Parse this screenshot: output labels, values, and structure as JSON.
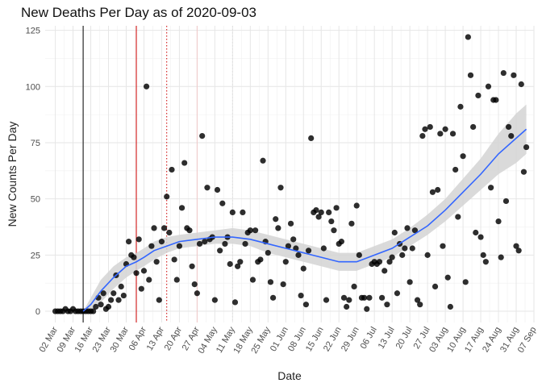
{
  "chart_data": {
    "type": "scatter",
    "title": "New Deaths Per Day as of 2020-09-03",
    "xlabel": "Date",
    "ylabel": "New Counts Per Day",
    "ylim": [
      -5,
      127
    ],
    "xlim": [
      "2020-02-27",
      "2020-09-07"
    ],
    "yticks": [
      0,
      25,
      50,
      75,
      100,
      125
    ],
    "xticks": [
      "02 Mar",
      "09 Mar",
      "16 Mar",
      "23 Mar",
      "30 Mar",
      "06 Apr",
      "13 Apr",
      "20 Apr",
      "27 Apr",
      "04 May",
      "11 May",
      "18 May",
      "25 May",
      "01 Jun",
      "08 Jun",
      "15 Jun",
      "22 Jun",
      "29 Jun",
      "06 Jul",
      "13 Jul",
      "20 Jul",
      "27 Jul",
      "03 Aug",
      "10 Aug",
      "17 Aug",
      "24 Aug",
      "31 Aug",
      "07 Sep"
    ],
    "xtick_dates": [
      "2020-03-02",
      "2020-03-09",
      "2020-03-16",
      "2020-03-23",
      "2020-03-30",
      "2020-04-06",
      "2020-04-13",
      "2020-04-20",
      "2020-04-27",
      "2020-05-04",
      "2020-05-11",
      "2020-05-18",
      "2020-05-25",
      "2020-06-01",
      "2020-06-08",
      "2020-06-15",
      "2020-06-22",
      "2020-06-29",
      "2020-07-06",
      "2020-07-13",
      "2020-07-20",
      "2020-07-27",
      "2020-08-03",
      "2020-08-10",
      "2020-08-17",
      "2020-08-24",
      "2020-08-31",
      "2020-09-07"
    ],
    "grid": true,
    "vertical_lines": [
      {
        "date": "2020-03-13",
        "color": "#000000",
        "style": "solid"
      },
      {
        "date": "2020-04-03",
        "color": "#cc0000",
        "style": "solid"
      },
      {
        "date": "2020-04-15",
        "color": "#cc0000",
        "style": "dotted"
      },
      {
        "date": "2020-04-27",
        "color": "#f0c8c8",
        "style": "solid"
      },
      {
        "date": "2020-05-11",
        "color": "#dddddd",
        "style": "dotted"
      }
    ],
    "series": [
      {
        "type": "scatter",
        "color": "#000000",
        "points": [
          [
            "2020-03-02",
            0
          ],
          [
            "2020-03-03",
            0
          ],
          [
            "2020-03-04",
            0
          ],
          [
            "2020-03-05",
            0
          ],
          [
            "2020-03-06",
            1
          ],
          [
            "2020-03-07",
            0
          ],
          [
            "2020-03-08",
            0
          ],
          [
            "2020-03-09",
            1
          ],
          [
            "2020-03-10",
            0
          ],
          [
            "2020-03-11",
            0
          ],
          [
            "2020-03-12",
            0
          ],
          [
            "2020-03-13",
            0
          ],
          [
            "2020-03-14",
            0
          ],
          [
            "2020-03-15",
            0
          ],
          [
            "2020-03-16",
            0
          ],
          [
            "2020-03-17",
            0
          ],
          [
            "2020-03-18",
            2
          ],
          [
            "2020-03-19",
            6
          ],
          [
            "2020-03-20",
            3
          ],
          [
            "2020-03-21",
            8
          ],
          [
            "2020-03-22",
            1
          ],
          [
            "2020-03-23",
            2
          ],
          [
            "2020-03-24",
            5
          ],
          [
            "2020-03-25",
            8
          ],
          [
            "2020-03-26",
            16
          ],
          [
            "2020-03-27",
            5
          ],
          [
            "2020-03-28",
            11
          ],
          [
            "2020-03-29",
            7
          ],
          [
            "2020-03-30",
            21
          ],
          [
            "2020-03-31",
            31
          ],
          [
            "2020-04-01",
            25
          ],
          [
            "2020-04-02",
            24
          ],
          [
            "2020-04-03",
            17
          ],
          [
            "2020-04-04",
            32
          ],
          [
            "2020-04-05",
            10
          ],
          [
            "2020-04-06",
            18
          ],
          [
            "2020-04-07",
            100
          ],
          [
            "2020-04-08",
            14
          ],
          [
            "2020-04-09",
            29
          ],
          [
            "2020-04-10",
            37
          ],
          [
            "2020-04-11",
            22
          ],
          [
            "2020-04-12",
            5
          ],
          [
            "2020-04-13",
            31
          ],
          [
            "2020-04-14",
            37
          ],
          [
            "2020-04-15",
            51
          ],
          [
            "2020-04-16",
            35
          ],
          [
            "2020-04-17",
            63
          ],
          [
            "2020-04-18",
            23
          ],
          [
            "2020-04-19",
            14
          ],
          [
            "2020-04-20",
            29
          ],
          [
            "2020-04-21",
            46
          ],
          [
            "2020-04-22",
            66
          ],
          [
            "2020-04-23",
            37
          ],
          [
            "2020-04-24",
            36
          ],
          [
            "2020-04-25",
            20
          ],
          [
            "2020-04-26",
            12
          ],
          [
            "2020-04-27",
            8
          ],
          [
            "2020-04-28",
            30
          ],
          [
            "2020-04-29",
            78
          ],
          [
            "2020-04-30",
            31
          ],
          [
            "2020-05-01",
            55
          ],
          [
            "2020-05-02",
            32
          ],
          [
            "2020-05-03",
            33
          ],
          [
            "2020-05-04",
            5
          ],
          [
            "2020-05-05",
            54
          ],
          [
            "2020-05-06",
            27
          ],
          [
            "2020-05-07",
            48
          ],
          [
            "2020-05-08",
            30
          ],
          [
            "2020-05-09",
            33
          ],
          [
            "2020-05-10",
            21
          ],
          [
            "2020-05-11",
            44
          ],
          [
            "2020-05-12",
            4
          ],
          [
            "2020-05-13",
            20
          ],
          [
            "2020-05-14",
            22
          ],
          [
            "2020-05-15",
            44
          ],
          [
            "2020-05-16",
            30
          ],
          [
            "2020-05-17",
            35
          ],
          [
            "2020-05-18",
            36
          ],
          [
            "2020-05-19",
            14
          ],
          [
            "2020-05-20",
            36
          ],
          [
            "2020-05-21",
            22
          ],
          [
            "2020-05-22",
            23
          ],
          [
            "2020-05-23",
            67
          ],
          [
            "2020-05-24",
            31
          ],
          [
            "2020-05-25",
            26
          ],
          [
            "2020-05-26",
            13
          ],
          [
            "2020-05-27",
            6
          ],
          [
            "2020-05-28",
            41
          ],
          [
            "2020-05-29",
            37
          ],
          [
            "2020-05-30",
            55
          ],
          [
            "2020-05-31",
            12
          ],
          [
            "2020-06-01",
            22
          ],
          [
            "2020-06-02",
            29
          ],
          [
            "2020-06-03",
            39
          ],
          [
            "2020-06-04",
            32
          ],
          [
            "2020-06-05",
            28
          ],
          [
            "2020-06-06",
            25
          ],
          [
            "2020-06-07",
            7
          ],
          [
            "2020-06-08",
            19
          ],
          [
            "2020-06-09",
            3
          ],
          [
            "2020-06-10",
            27
          ],
          [
            "2020-06-11",
            77
          ],
          [
            "2020-06-12",
            44
          ],
          [
            "2020-06-13",
            45
          ],
          [
            "2020-06-14",
            42
          ],
          [
            "2020-06-15",
            44
          ],
          [
            "2020-06-16",
            28
          ],
          [
            "2020-06-17",
            5
          ],
          [
            "2020-06-18",
            44
          ],
          [
            "2020-06-19",
            40
          ],
          [
            "2020-06-20",
            36
          ],
          [
            "2020-06-21",
            46
          ],
          [
            "2020-06-22",
            30
          ],
          [
            "2020-06-23",
            31
          ],
          [
            "2020-06-24",
            6
          ],
          [
            "2020-06-25",
            2
          ],
          [
            "2020-06-26",
            5
          ],
          [
            "2020-06-27",
            39
          ],
          [
            "2020-06-28",
            11
          ],
          [
            "2020-06-29",
            47
          ],
          [
            "2020-06-30",
            25
          ],
          [
            "2020-07-01",
            6
          ],
          [
            "2020-07-02",
            6
          ],
          [
            "2020-07-03",
            1
          ],
          [
            "2020-07-04",
            6
          ],
          [
            "2020-07-05",
            21
          ],
          [
            "2020-07-06",
            22
          ],
          [
            "2020-07-07",
            21
          ],
          [
            "2020-07-08",
            22
          ],
          [
            "2020-07-09",
            6
          ],
          [
            "2020-07-10",
            18
          ],
          [
            "2020-07-11",
            3
          ],
          [
            "2020-07-12",
            22
          ],
          [
            "2020-07-13",
            24
          ],
          [
            "2020-07-14",
            35
          ],
          [
            "2020-07-15",
            8
          ],
          [
            "2020-07-16",
            30
          ],
          [
            "2020-07-17",
            25
          ],
          [
            "2020-07-18",
            28
          ],
          [
            "2020-07-19",
            37
          ],
          [
            "2020-07-20",
            13
          ],
          [
            "2020-07-21",
            28
          ],
          [
            "2020-07-22",
            36
          ],
          [
            "2020-07-23",
            5
          ],
          [
            "2020-07-24",
            3
          ],
          [
            "2020-07-25",
            78
          ],
          [
            "2020-07-26",
            81
          ],
          [
            "2020-07-27",
            25
          ],
          [
            "2020-07-28",
            82
          ],
          [
            "2020-07-29",
            53
          ],
          [
            "2020-07-30",
            11
          ],
          [
            "2020-07-31",
            54
          ],
          [
            "2020-08-01",
            79
          ],
          [
            "2020-08-02",
            29
          ],
          [
            "2020-08-03",
            81
          ],
          [
            "2020-08-04",
            15
          ],
          [
            "2020-08-05",
            2
          ],
          [
            "2020-08-06",
            79
          ],
          [
            "2020-08-07",
            63
          ],
          [
            "2020-08-08",
            42
          ],
          [
            "2020-08-09",
            91
          ],
          [
            "2020-08-10",
            69
          ],
          [
            "2020-08-11",
            13
          ],
          [
            "2020-08-12",
            122
          ],
          [
            "2020-08-13",
            105
          ],
          [
            "2020-08-14",
            82
          ],
          [
            "2020-08-15",
            35
          ],
          [
            "2020-08-16",
            96
          ],
          [
            "2020-08-17",
            33
          ],
          [
            "2020-08-18",
            25
          ],
          [
            "2020-08-19",
            22
          ],
          [
            "2020-08-20",
            100
          ],
          [
            "2020-08-21",
            55
          ],
          [
            "2020-08-22",
            94
          ],
          [
            "2020-08-23",
            94
          ],
          [
            "2020-08-24",
            40
          ],
          [
            "2020-08-25",
            24
          ],
          [
            "2020-08-26",
            106
          ],
          [
            "2020-08-27",
            49
          ],
          [
            "2020-08-28",
            82
          ],
          [
            "2020-08-29",
            78
          ],
          [
            "2020-08-30",
            105
          ],
          [
            "2020-08-31",
            29
          ],
          [
            "2020-09-01",
            27
          ],
          [
            "2020-09-02",
            101
          ],
          [
            "2020-09-03",
            62
          ],
          [
            "2020-09-04",
            73
          ]
        ]
      },
      {
        "type": "smooth",
        "color": "#3366ff",
        "band_color": "#d3d3d3",
        "points": [
          [
            "2020-03-13",
            0,
            0,
            0
          ],
          [
            "2020-03-16",
            3,
            0,
            6
          ],
          [
            "2020-03-20",
            9,
            4,
            14
          ],
          [
            "2020-03-25",
            15,
            10,
            20
          ],
          [
            "2020-03-30",
            20,
            15,
            24
          ],
          [
            "2020-04-03",
            22,
            18,
            26
          ],
          [
            "2020-04-06",
            24,
            20,
            28
          ],
          [
            "2020-04-10",
            27,
            23,
            31
          ],
          [
            "2020-04-15",
            29,
            26,
            33
          ],
          [
            "2020-04-20",
            31,
            28,
            34
          ],
          [
            "2020-04-27",
            32,
            29,
            35
          ],
          [
            "2020-05-04",
            33,
            30,
            36
          ],
          [
            "2020-05-11",
            33,
            30,
            37
          ],
          [
            "2020-05-18",
            32,
            29,
            36
          ],
          [
            "2020-05-25",
            30,
            26,
            34
          ],
          [
            "2020-06-01",
            28,
            24,
            32
          ],
          [
            "2020-06-08",
            26,
            22,
            30
          ],
          [
            "2020-06-15",
            24,
            20,
            28
          ],
          [
            "2020-06-22",
            22,
            18,
            26
          ],
          [
            "2020-06-29",
            22,
            18,
            26
          ],
          [
            "2020-07-06",
            25,
            21,
            29
          ],
          [
            "2020-07-13",
            28,
            24,
            32
          ],
          [
            "2020-07-20",
            33,
            29,
            37
          ],
          [
            "2020-07-27",
            38,
            34,
            43
          ],
          [
            "2020-08-03",
            45,
            40,
            50
          ],
          [
            "2020-08-10",
            53,
            47,
            59
          ],
          [
            "2020-08-17",
            61,
            54,
            68
          ],
          [
            "2020-08-24",
            70,
            61,
            79
          ],
          [
            "2020-08-31",
            77,
            66,
            88
          ],
          [
            "2020-09-04",
            81,
            70,
            92
          ]
        ]
      }
    ]
  }
}
